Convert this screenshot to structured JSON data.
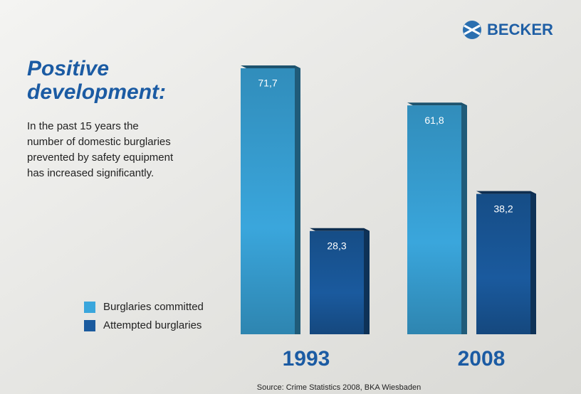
{
  "logo": "BECKER",
  "headline": [
    "Positive",
    "development:"
  ],
  "description": [
    "In the past 15 years the",
    "number of domestic burglaries",
    "prevented by safety equipment",
    "has increased significantly."
  ],
  "source": "Source: Crime Statistics 2008, BKA Wiesbaden",
  "chart_data": {
    "type": "bar",
    "categories": [
      "1993",
      "2008"
    ],
    "series": [
      {
        "name": "Burglaries committed",
        "color": "#3aa6dc",
        "values": [
          71.7,
          61.8
        ],
        "value_labels": [
          "71,7",
          "61,8"
        ]
      },
      {
        "name": "Attempted burglaries",
        "color": "#1a5a9e",
        "values": [
          28.3,
          38.2
        ],
        "value_labels": [
          "28,3",
          "38,2"
        ]
      }
    ]
  }
}
